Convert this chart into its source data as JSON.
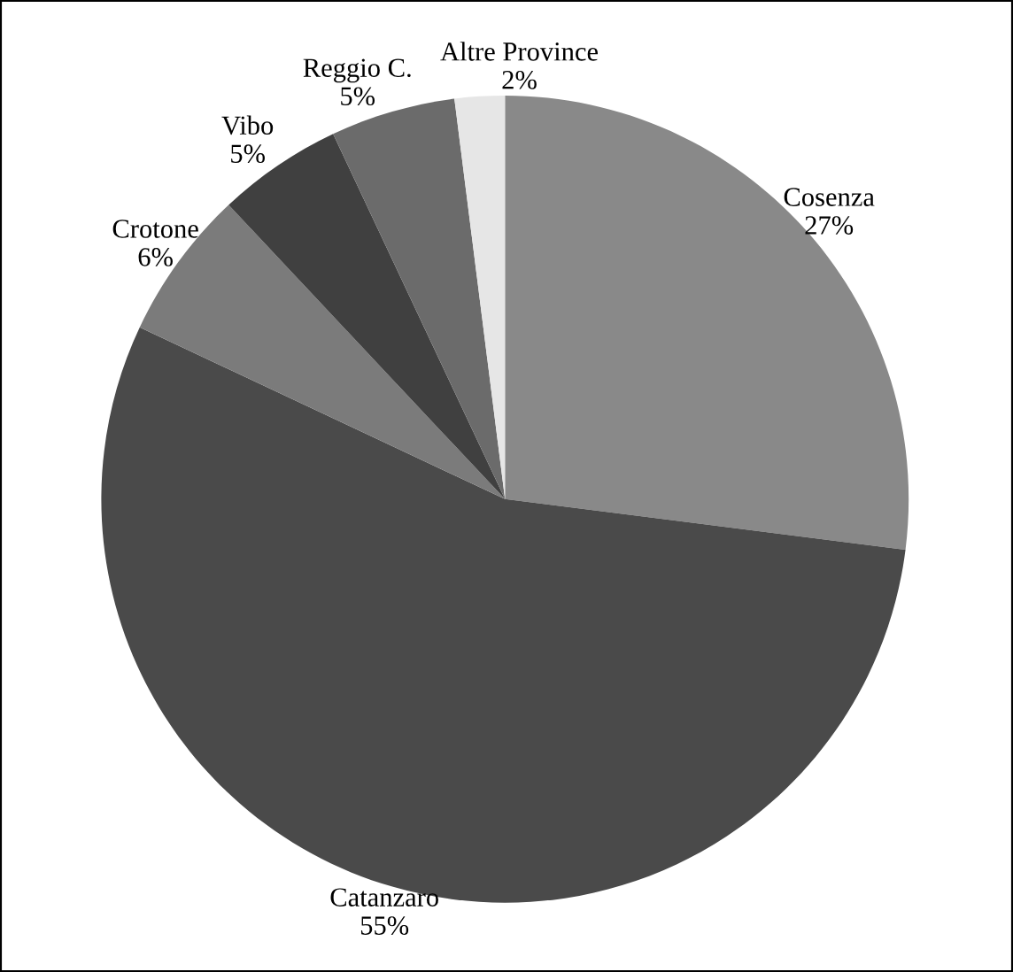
{
  "chart_data": {
    "type": "pie",
    "categories": [
      "Cosenza",
      "Catanzaro",
      "Crotone",
      "Vibo",
      "Reggio C.",
      "Altre Province"
    ],
    "values": [
      27,
      55,
      6,
      5,
      5,
      2
    ],
    "value_labels": [
      "27%",
      "55%",
      "6%",
      "5%",
      "5%",
      "2%"
    ],
    "colors": [
      "#898989",
      "#4a4a4a",
      "#7b7b7b",
      "#404040",
      "#6b6b6b",
      "#e6e6e6"
    ]
  }
}
